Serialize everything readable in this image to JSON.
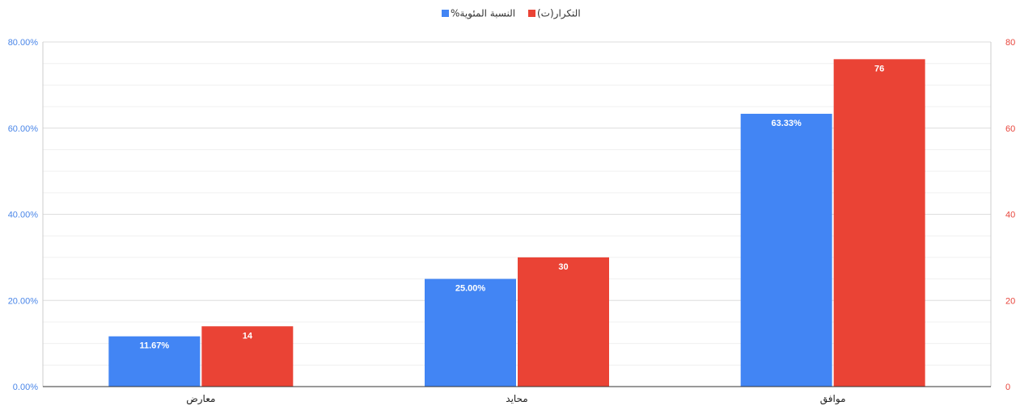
{
  "chart_data": {
    "type": "bar",
    "categories": [
      "معارض",
      "محايد",
      "موافق"
    ],
    "series": [
      {
        "name": "%النسبة المئوية",
        "axis": "left",
        "color": "#4285f4",
        "values": [
          11.67,
          25.0,
          63.33
        ],
        "labels": [
          "11.67%",
          "25.00%",
          "63.33%"
        ]
      },
      {
        "name": "التكرار(ت)",
        "axis": "right",
        "color": "#ea4335",
        "values": [
          14,
          30,
          76
        ],
        "labels": [
          "14",
          "30",
          "76"
        ]
      }
    ],
    "y_left": {
      "ylim": [
        0,
        80
      ],
      "ticks": [
        "0.00%",
        "20.00%",
        "40.00%",
        "60.00%",
        "80.00%"
      ],
      "color": "#4a86e8"
    },
    "y_right": {
      "ylim": [
        0,
        80
      ],
      "ticks": [
        "0",
        "20",
        "40",
        "60",
        "80"
      ],
      "color": "#e8453c"
    },
    "legend_position": "top-center",
    "grid": true
  }
}
